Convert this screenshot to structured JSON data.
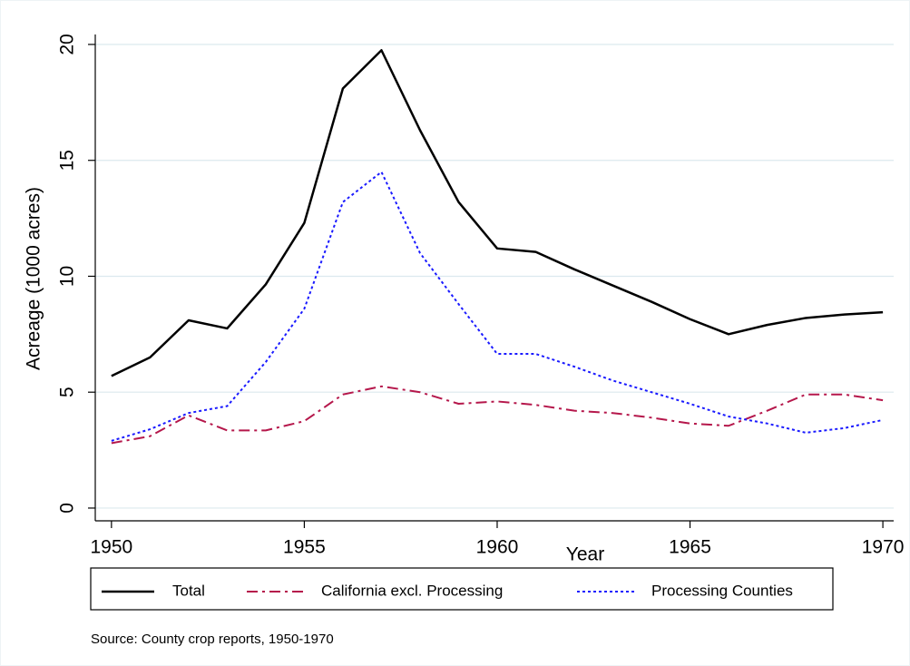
{
  "chart_data": {
    "type": "line",
    "x": [
      1950,
      1951,
      1952,
      1953,
      1954,
      1955,
      1956,
      1957,
      1958,
      1959,
      1960,
      1961,
      1962,
      1963,
      1964,
      1965,
      1966,
      1967,
      1968,
      1969,
      1970
    ],
    "series": [
      {
        "name": "Total",
        "color": "#000000",
        "values": [
          5.7,
          6.5,
          8.1,
          7.75,
          9.65,
          12.3,
          18.1,
          19.75,
          16.3,
          13.2,
          11.2,
          11.05,
          10.3,
          9.6,
          8.9,
          8.15,
          7.5,
          7.9,
          8.2,
          8.35,
          8.45
        ]
      },
      {
        "name": "California excl. Processing",
        "color": "#b5174b",
        "values": [
          2.8,
          3.1,
          4.0,
          3.35,
          3.35,
          3.75,
          4.9,
          5.25,
          5.0,
          4.5,
          4.6,
          4.45,
          4.2,
          4.1,
          3.9,
          3.65,
          3.55,
          4.2,
          4.9,
          4.9,
          4.65
        ]
      },
      {
        "name": "Processing Counties",
        "color": "#1a1aff",
        "values": [
          2.9,
          3.4,
          4.1,
          4.4,
          6.3,
          8.6,
          13.2,
          14.5,
          11.0,
          8.8,
          6.65,
          6.65,
          6.1,
          5.5,
          5.0,
          4.5,
          3.95,
          3.65,
          3.25,
          3.45,
          3.8
        ]
      }
    ],
    "x_label": "Year",
    "y_label": "Acreage (1000 acres)",
    "note": "Source: County crop reports, 1950-1970",
    "xlim": [
      1949.58,
      1970.28
    ],
    "xticks": [
      1950,
      1955,
      1960,
      1965,
      1970
    ],
    "ylim": [
      -0.55,
      20.43
    ],
    "yticks": [
      0,
      5,
      10,
      15,
      20
    ],
    "grid": true
  }
}
